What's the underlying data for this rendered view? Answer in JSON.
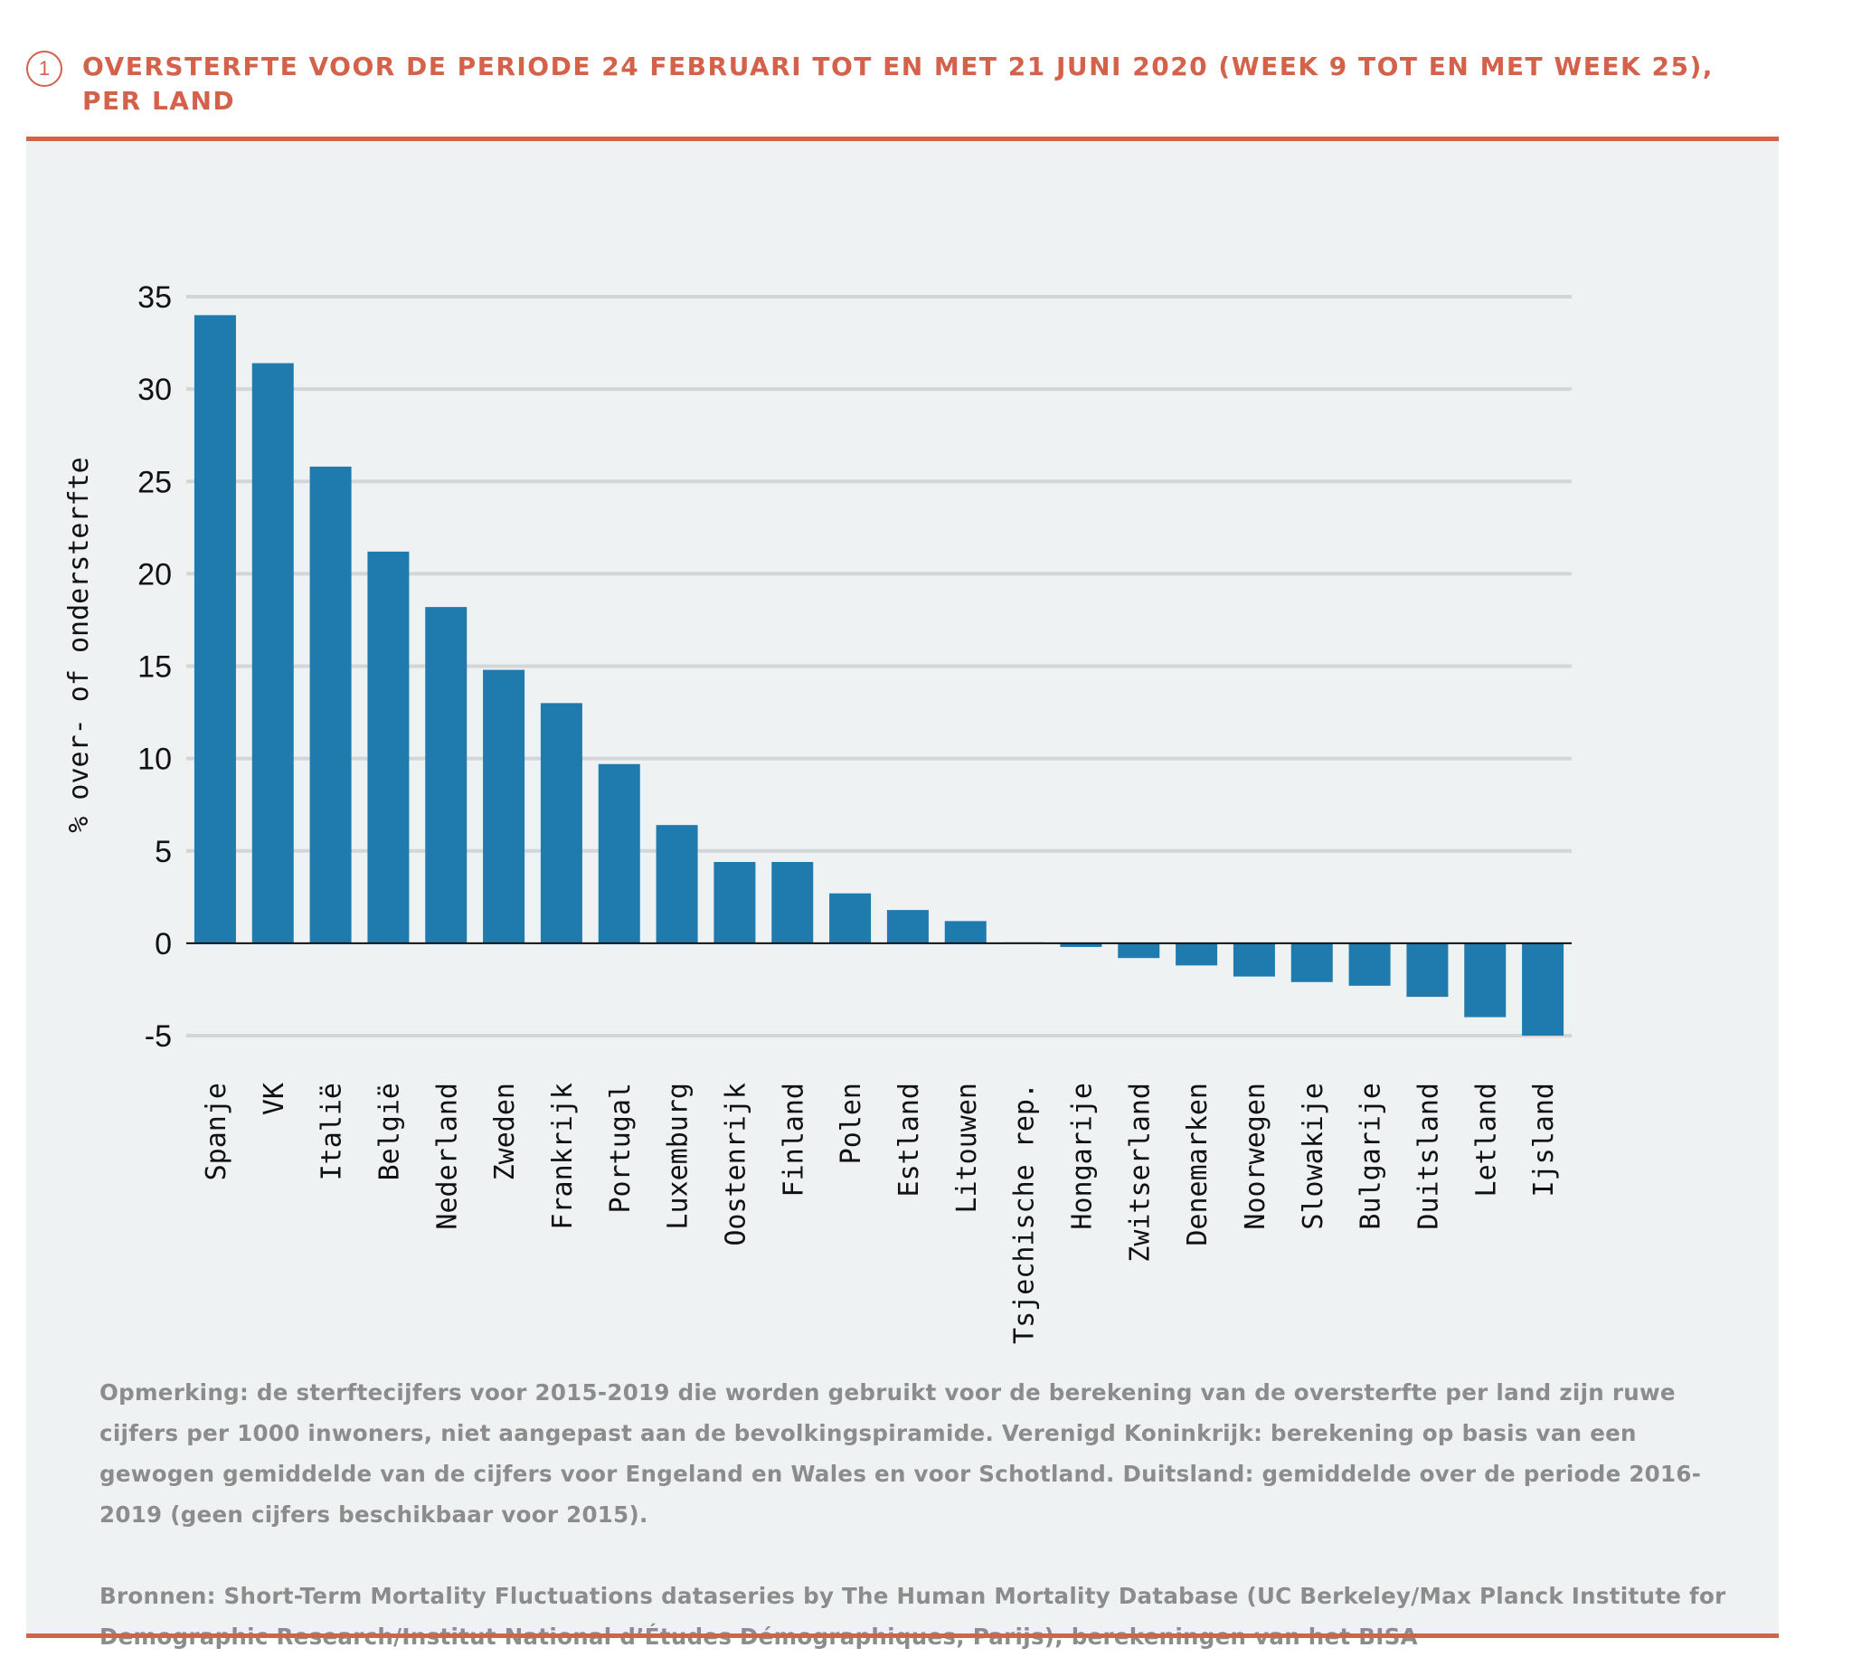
{
  "figure": {
    "number": "1",
    "title": "OVERSTERFTE VOOR DE PERIODE 24 FEBRUARI TOT EN MET 21 JUNI 2020 (WEEK 9 TOT EN MET WEEK 25), PER LAND"
  },
  "colors": {
    "accent": "#d4614a",
    "bar": "#1f7bae",
    "panel": "#eef2f3",
    "grid": "#d3d6d8",
    "note_text": "#8c8c8c"
  },
  "chart_data": {
    "type": "bar",
    "title": "",
    "xlabel": "",
    "ylabel": "% over- of ondersterfte",
    "ylim": [
      -5,
      35
    ],
    "yticks": [
      35,
      30,
      25,
      20,
      15,
      10,
      5,
      0,
      -5
    ],
    "grid": true,
    "categories": [
      "Spanje",
      "VK",
      "Italië",
      "België",
      "Nederland",
      "Zweden",
      "Frankrijk",
      "Portugal",
      "Luxemburg",
      "Oostenrijk",
      "Finland",
      "Polen",
      "Estland",
      "Litouwen",
      "Tsjechische rep.",
      "Hongarije",
      "Zwitserland",
      "Denemarken",
      "Noorwegen",
      "Slowakije",
      "Bulgarije",
      "Duitsland",
      "Letland",
      "Ijsland"
    ],
    "values": [
      34.0,
      31.4,
      25.8,
      21.2,
      18.2,
      14.8,
      13.0,
      9.7,
      6.4,
      4.4,
      4.4,
      2.7,
      1.8,
      1.2,
      0.05,
      -0.2,
      -0.8,
      -1.2,
      -1.8,
      -2.1,
      -2.3,
      -2.9,
      -4.0,
      -5.0
    ]
  },
  "notes": {
    "remark": "Opmerking: de sterftecijfers voor 2015-2019 die worden gebruikt voor de berekening van de oversterfte per land zijn ruwe cijfers per 1000 inwoners, niet aangepast aan de bevolkingspiramide. Verenigd Koninkrijk: berekening op basis van een gewogen gemiddelde van de cijfers voor Engeland en Wales en voor Schotland. Duitsland: gemiddelde over de periode 2016-2019 (geen cijfers beschikbaar voor 2015).",
    "sources": "Bronnen: Short-Term Mortality Fluctuations dataseries by The Human Mortality Database (UC Berkeley/Max Planck Institute for Demographic Research/Institut National d’Études Démographiques, Parijs), berekeningen van het BISA"
  }
}
